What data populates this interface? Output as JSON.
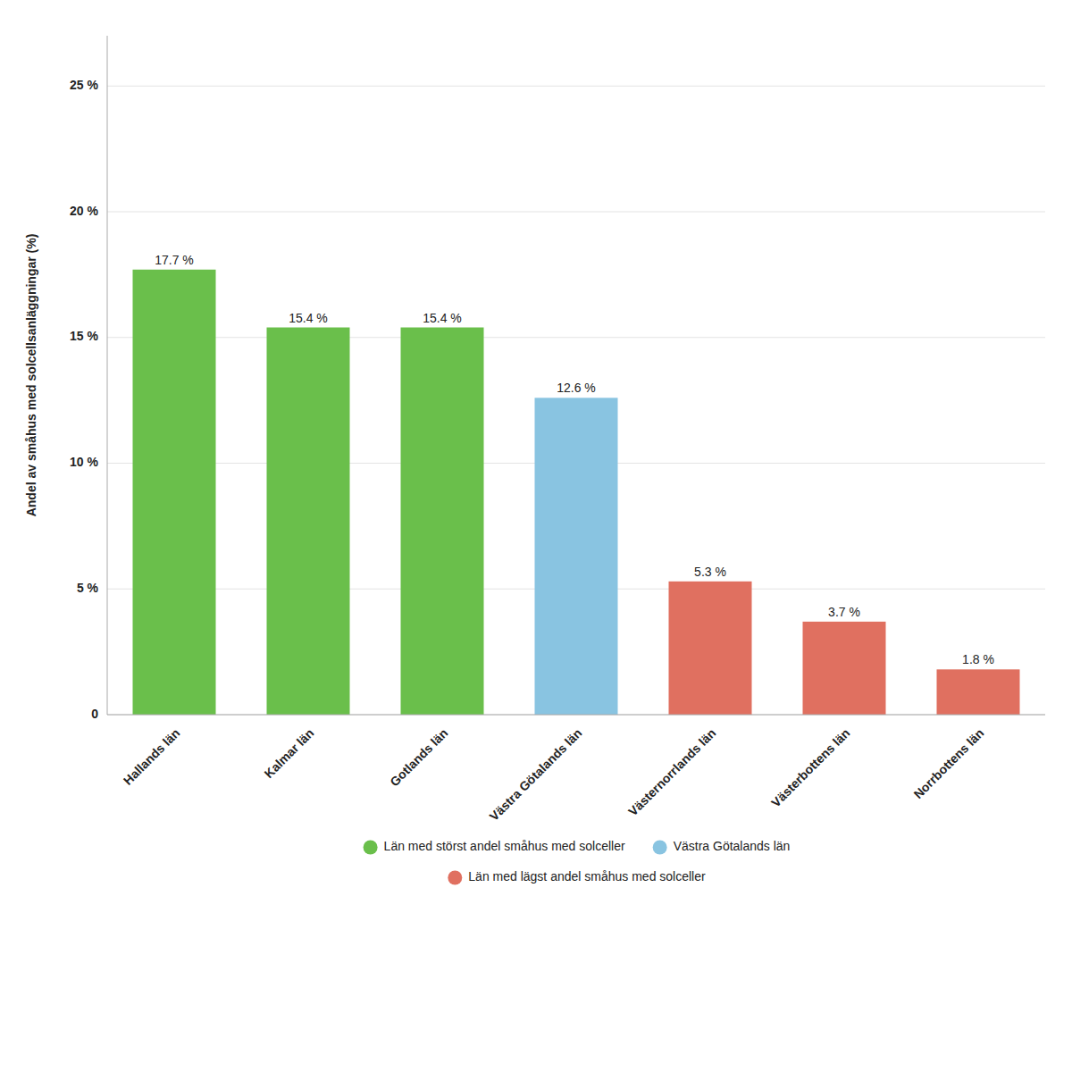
{
  "chart_data": {
    "type": "bar",
    "categories": [
      "Hallands län",
      "Kalmar län",
      "Gotlands län",
      "Västra Götalands län",
      "Västernorrlands län",
      "Västerbottens län",
      "Norrbottens län"
    ],
    "values": [
      17.7,
      15.4,
      15.4,
      12.6,
      5.3,
      3.7,
      1.8
    ],
    "value_labels": [
      "17.7 %",
      "15.4 %",
      "15.4 %",
      "12.6 %",
      "5.3 %",
      "3.7 %",
      "1.8 %"
    ],
    "colors": [
      "#6abf4b",
      "#6abf4b",
      "#6abf4b",
      "#89c4e1",
      "#e07060",
      "#e07060",
      "#e07060"
    ],
    "ylabel": "Andel av småhus med solcellsanläggningar (%)",
    "ylim": [
      0,
      27
    ],
    "yticks": [
      0,
      {
        "value": 5,
        "label": "5 %"
      },
      {
        "value": 10,
        "label": "10 %"
      },
      {
        "value": 15,
        "label": "15 %"
      },
      {
        "value": 20,
        "label": "20 %"
      },
      {
        "value": 25,
        "label": "25 %"
      }
    ],
    "grid": true,
    "legend": "bottom",
    "legend_entries": [
      {
        "label": "Län med störst andel småhus med solceller",
        "color": "#6abf4b"
      },
      {
        "label": "Västra Götalands län",
        "color": "#89c4e1"
      },
      {
        "label": "Län med lägst andel småhus med solceller",
        "color": "#e07060"
      }
    ]
  }
}
